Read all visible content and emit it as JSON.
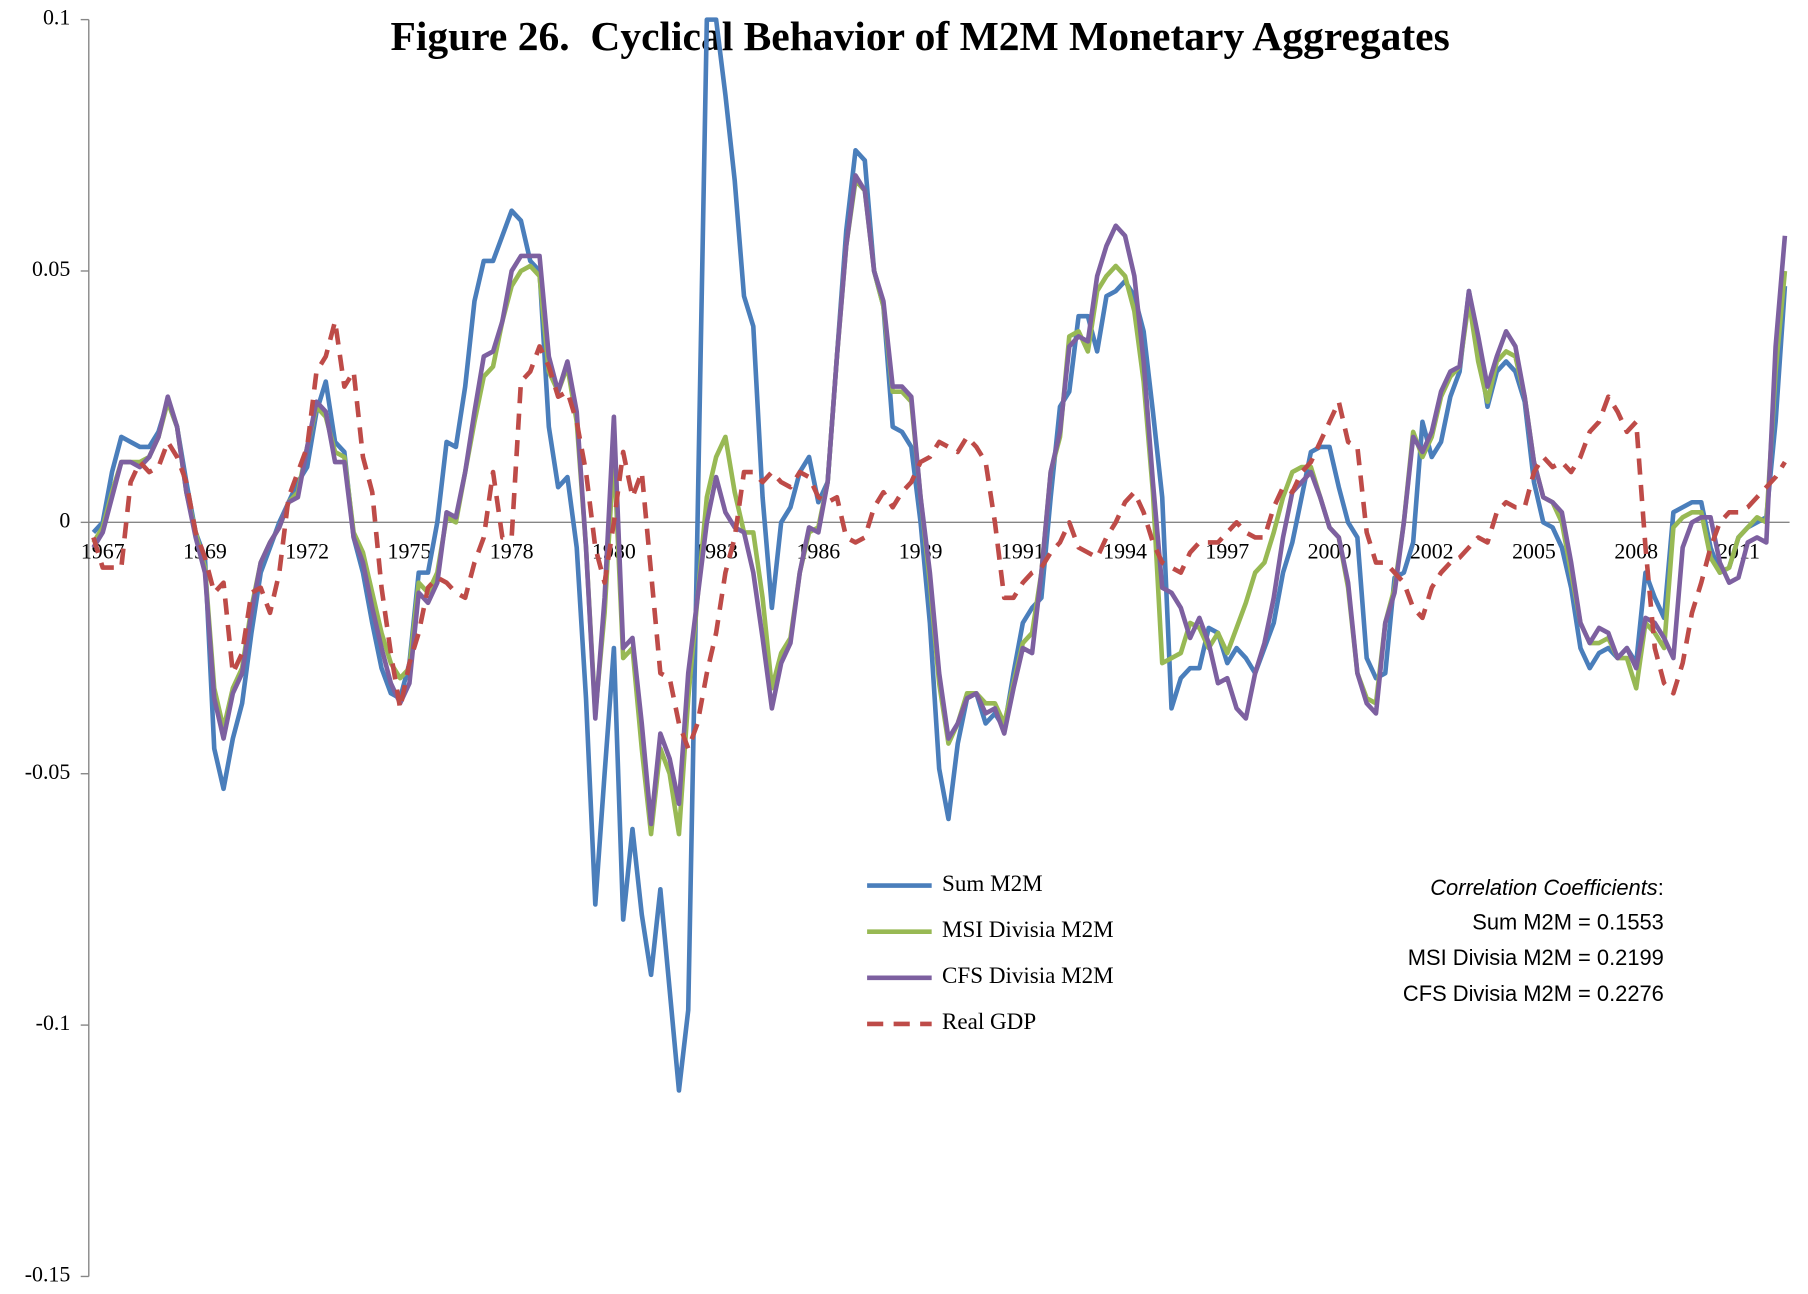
{
  "chart_data": {
    "type": "line",
    "title": "Figure 26.  Cyclical Behavior of M2M Monetary Aggregates",
    "categories": [
      null,
      "1967",
      null,
      null,
      null,
      null,
      null,
      null,
      null,
      null,
      null,
      null,
      "1969",
      null,
      null,
      null,
      null,
      null,
      null,
      null,
      null,
      null,
      null,
      "1972",
      null,
      null,
      null,
      null,
      null,
      null,
      null,
      null,
      null,
      null,
      "1975",
      null,
      null,
      null,
      null,
      null,
      null,
      null,
      null,
      null,
      null,
      "1978",
      null,
      null,
      null,
      null,
      null,
      null,
      null,
      null,
      null,
      null,
      "1980",
      null,
      null,
      null,
      null,
      null,
      null,
      null,
      null,
      null,
      null,
      "1983",
      null,
      null,
      null,
      null,
      null,
      null,
      null,
      null,
      null,
      null,
      "1986",
      null,
      null,
      null,
      null,
      null,
      null,
      null,
      null,
      null,
      null,
      "1989",
      null,
      null,
      null,
      null,
      null,
      null,
      null,
      null,
      null,
      null,
      "1991",
      null,
      null,
      null,
      null,
      null,
      null,
      null,
      null,
      null,
      null,
      "1994",
      null,
      null,
      null,
      null,
      null,
      null,
      null,
      null,
      null,
      null,
      "1997",
      null,
      null,
      null,
      null,
      null,
      null,
      null,
      null,
      null,
      null,
      "2000",
      null,
      null,
      null,
      null,
      null,
      null,
      null,
      null,
      null,
      null,
      "2002",
      null,
      null,
      null,
      null,
      null,
      null,
      null,
      null,
      null,
      null,
      "2005",
      null,
      null,
      null,
      null,
      null,
      null,
      null,
      null,
      null,
      null,
      "2008",
      null,
      null,
      null,
      null,
      null,
      null,
      null,
      null,
      null,
      null,
      "2011",
      null,
      null,
      null,
      null,
      null
    ],
    "series": [
      {
        "name": "Sum M2M",
        "color": "#4a7ebb",
        "dash": false,
        "values": [
          -0.002,
          0,
          0.01,
          0.017,
          0.016,
          0.015,
          0.015,
          0.018,
          0.024,
          0.019,
          0.008,
          -0.002,
          -0.007,
          -0.045,
          -0.053,
          -0.043,
          -0.036,
          -0.022,
          -0.01,
          -0.005,
          0,
          0.004,
          0.008,
          0.011,
          0.022,
          0.028,
          0.016,
          0.014,
          -0.003,
          -0.01,
          -0.02,
          -0.029,
          -0.034,
          -0.035,
          -0.028,
          -0.01,
          -0.01,
          0,
          0.016,
          0.015,
          0.027,
          0.044,
          0.052,
          0.052,
          0.057,
          0.062,
          0.06,
          0.052,
          0.05,
          0.019,
          0.007,
          0.009,
          -0.005,
          -0.035,
          -0.076,
          -0.05,
          -0.025,
          -0.079,
          -0.061,
          -0.078,
          -0.09,
          -0.073,
          -0.093,
          -0.113,
          -0.097,
          0,
          0.1,
          0.1,
          0.085,
          0.068,
          0.045,
          0.039,
          0.005,
          -0.017,
          0,
          0.003,
          0.01,
          0.013,
          0.004,
          0.008,
          0.033,
          0.058,
          0.074,
          0.072,
          0.05,
          0.043,
          0.019,
          0.018,
          0.015,
          0,
          -0.02,
          -0.049,
          -0.059,
          -0.044,
          -0.035,
          -0.034,
          -0.04,
          -0.038,
          -0.041,
          -0.03,
          -0.02,
          -0.017,
          -0.015,
          0.005,
          0.023,
          0.026,
          0.041,
          0.041,
          0.034,
          0.045,
          0.046,
          0.048,
          0.045,
          0.038,
          0.022,
          0.005,
          -0.037,
          -0.031,
          -0.029,
          -0.029,
          -0.021,
          -0.022,
          -0.028,
          -0.025,
          -0.027,
          -0.03,
          -0.025,
          -0.02,
          -0.01,
          -0.004,
          0.005,
          0.014,
          0.015,
          0.015,
          0.007,
          0,
          -0.003,
          -0.027,
          -0.031,
          -0.03,
          -0.011,
          -0.01,
          -0.004,
          0.02,
          0.013,
          0.016,
          0.025,
          0.03,
          0.046,
          0.035,
          0.023,
          0.03,
          0.032,
          0.03,
          0.024,
          0.008,
          0,
          -0.001,
          -0.005,
          -0.013,
          -0.025,
          -0.029,
          -0.026,
          -0.025,
          -0.027,
          -0.025,
          -0.028,
          -0.01,
          -0.015,
          -0.019,
          0.002,
          0.003,
          0.004,
          0.004,
          -0.005,
          -0.01,
          -0.009,
          -0.003,
          -0.001,
          0,
          0.001,
          0.02,
          0.047
        ]
      },
      {
        "name": "MSI Divisia M2M",
        "color": "#98b954",
        "dash": false,
        "values": [
          -0.004,
          -0.001,
          0.006,
          0.012,
          0.012,
          0.012,
          0.013,
          0.017,
          0.024,
          0.019,
          0.006,
          -0.002,
          -0.009,
          -0.033,
          -0.041,
          -0.033,
          -0.029,
          -0.017,
          -0.008,
          -0.004,
          -0.001,
          0.004,
          0.006,
          0.015,
          0.023,
          0.021,
          0.014,
          0.013,
          -0.002,
          -0.006,
          -0.014,
          -0.022,
          -0.028,
          -0.031,
          -0.029,
          -0.012,
          -0.014,
          -0.01,
          0.001,
          0,
          0.01,
          0.02,
          0.029,
          0.031,
          0.04,
          0.047,
          0.05,
          0.051,
          0.049,
          0.03,
          0.026,
          0.031,
          0.02,
          -0.005,
          -0.038,
          -0.018,
          0.014,
          -0.027,
          -0.025,
          -0.045,
          -0.062,
          -0.045,
          -0.05,
          -0.062,
          -0.035,
          -0.015,
          0.005,
          0.013,
          0.017,
          0.006,
          -0.002,
          -0.002,
          -0.015,
          -0.033,
          -0.026,
          -0.023,
          -0.01,
          -0.002,
          -0.001,
          0.008,
          0.033,
          0.055,
          0.068,
          0.066,
          0.05,
          0.043,
          0.026,
          0.026,
          0.024,
          0.005,
          -0.012,
          -0.032,
          -0.044,
          -0.04,
          -0.034,
          -0.034,
          -0.036,
          -0.036,
          -0.04,
          -0.032,
          -0.024,
          -0.022,
          -0.01,
          0.01,
          0.017,
          0.037,
          0.038,
          0.034,
          0.046,
          0.049,
          0.051,
          0.049,
          0.042,
          0.028,
          0.006,
          -0.028,
          -0.027,
          -0.026,
          -0.02,
          -0.021,
          -0.025,
          -0.022,
          -0.026,
          -0.021,
          -0.016,
          -0.01,
          -0.008,
          -0.002,
          0.005,
          0.01,
          0.011,
          0.011,
          0.005,
          -0.001,
          -0.003,
          -0.013,
          -0.03,
          -0.035,
          -0.036,
          -0.02,
          -0.013,
          0,
          0.018,
          0.013,
          0.017,
          0.025,
          0.029,
          0.031,
          0.044,
          0.032,
          0.024,
          0.032,
          0.034,
          0.033,
          0.025,
          0.012,
          0.005,
          0.004,
          0,
          -0.01,
          -0.02,
          -0.024,
          -0.024,
          -0.023,
          -0.027,
          -0.027,
          -0.033,
          -0.02,
          -0.022,
          -0.025,
          -0.001,
          0.001,
          0.002,
          0.002,
          -0.007,
          -0.01,
          -0.009,
          -0.003,
          -0.001,
          0.001,
          0,
          0.03,
          0.05
        ]
      },
      {
        "name": "CFS Divisia M2M",
        "color": "#7d60a0",
        "dash": false,
        "values": [
          -0.005,
          -0.002,
          0.005,
          0.012,
          0.012,
          0.011,
          0.013,
          0.017,
          0.025,
          0.019,
          0.006,
          -0.003,
          -0.01,
          -0.035,
          -0.043,
          -0.034,
          -0.03,
          -0.018,
          -0.008,
          -0.004,
          -0.001,
          0.004,
          0.005,
          0.015,
          0.024,
          0.022,
          0.012,
          0.012,
          -0.003,
          -0.008,
          -0.017,
          -0.025,
          -0.032,
          -0.036,
          -0.032,
          -0.014,
          -0.016,
          -0.012,
          0.002,
          0.001,
          0.01,
          0.022,
          0.033,
          0.034,
          0.04,
          0.05,
          0.053,
          0.053,
          0.053,
          0.033,
          0.026,
          0.032,
          0.022,
          -0.005,
          -0.039,
          -0.015,
          0.021,
          -0.025,
          -0.023,
          -0.04,
          -0.06,
          -0.042,
          -0.047,
          -0.056,
          -0.03,
          -0.015,
          0,
          0.009,
          0.002,
          -0.001,
          -0.002,
          -0.01,
          -0.023,
          -0.037,
          -0.028,
          -0.024,
          -0.01,
          -0.001,
          -0.002,
          0.008,
          0.033,
          0.055,
          0.069,
          0.066,
          0.05,
          0.044,
          0.027,
          0.027,
          0.025,
          0.005,
          -0.01,
          -0.03,
          -0.043,
          -0.04,
          -0.035,
          -0.034,
          -0.038,
          -0.037,
          -0.042,
          -0.033,
          -0.025,
          -0.026,
          -0.01,
          0.01,
          0.018,
          0.035,
          0.037,
          0.036,
          0.049,
          0.055,
          0.059,
          0.057,
          0.049,
          0.032,
          0.008,
          -0.013,
          -0.014,
          -0.017,
          -0.023,
          -0.019,
          -0.024,
          -0.032,
          -0.031,
          -0.037,
          -0.039,
          -0.03,
          -0.024,
          -0.015,
          -0.003,
          0.006,
          0.008,
          0.01,
          0.005,
          -0.001,
          -0.003,
          -0.012,
          -0.03,
          -0.036,
          -0.038,
          -0.02,
          -0.014,
          0,
          0.017,
          0.014,
          0.018,
          0.026,
          0.03,
          0.031,
          0.046,
          0.037,
          0.027,
          0.033,
          0.038,
          0.035,
          0.025,
          0.012,
          0.005,
          0.004,
          0.002,
          -0.008,
          -0.02,
          -0.024,
          -0.021,
          -0.022,
          -0.027,
          -0.025,
          -0.029,
          -0.019,
          -0.02,
          -0.023,
          -0.027,
          -0.005,
          0,
          0.001,
          0.001,
          -0.008,
          -0.012,
          -0.011,
          -0.004,
          -0.003,
          -0.004,
          0.035,
          0.057
        ]
      },
      {
        "name": "Real GDP",
        "color": "#be4b48",
        "dash": true,
        "values": [
          -0.003,
          -0.009,
          -0.009,
          -0.009,
          0.008,
          0.012,
          0.01,
          0.011,
          0.016,
          0.013,
          0.008,
          -0.002,
          -0.007,
          -0.014,
          -0.012,
          -0.03,
          -0.026,
          -0.014,
          -0.013,
          -0.018,
          -0.01,
          0.005,
          0.01,
          0.015,
          0.03,
          0.033,
          0.04,
          0.027,
          0.03,
          0.013,
          0.006,
          -0.013,
          -0.026,
          -0.037,
          -0.028,
          -0.022,
          -0.013,
          -0.011,
          -0.012,
          -0.014,
          -0.015,
          -0.008,
          -0.003,
          0.01,
          -0.003,
          -0.003,
          0.028,
          0.03,
          0.035,
          0.031,
          0.025,
          0.026,
          0.02,
          0.01,
          -0.005,
          -0.012,
          0,
          0.014,
          0.005,
          0.01,
          -0.01,
          -0.03,
          -0.031,
          -0.04,
          -0.045,
          -0.04,
          -0.03,
          -0.022,
          -0.01,
          -0.003,
          0.01,
          0.01,
          0.008,
          0.01,
          0.008,
          0.007,
          0.01,
          0.009,
          0.005,
          0.004,
          0.005,
          -0.003,
          -0.004,
          -0.003,
          0.003,
          0.006,
          0.003,
          0.006,
          0.008,
          0.012,
          0.013,
          0.016,
          0.015,
          0.014,
          0.017,
          0.015,
          0.012,
          0,
          -0.015,
          -0.015,
          -0.012,
          -0.01,
          -0.009,
          -0.006,
          -0.004,
          0,
          -0.005,
          -0.006,
          -0.007,
          -0.003,
          0,
          0.004,
          0.006,
          0.002,
          -0.004,
          -0.008,
          -0.009,
          -0.01,
          -0.006,
          -0.004,
          -0.004,
          -0.004,
          -0.002,
          0,
          -0.002,
          -0.003,
          -0.003,
          0.003,
          0.007,
          0.006,
          0.01,
          0.012,
          0.016,
          0.02,
          0.024,
          0.016,
          0.015,
          -0.002,
          -0.008,
          -0.008,
          -0.01,
          -0.012,
          -0.017,
          -0.019,
          -0.013,
          -0.01,
          -0.008,
          -0.007,
          -0.005,
          -0.003,
          -0.004,
          0.002,
          0.004,
          0.003,
          0.003,
          0.01,
          0.013,
          0.011,
          0.012,
          0.01,
          0.013,
          0.018,
          0.02,
          0.025,
          0.022,
          0.018,
          0.02,
          -0.005,
          -0.025,
          -0.032,
          -0.034,
          -0.028,
          -0.018,
          -0.012,
          -0.005,
          0,
          0.002,
          0.002,
          0.003,
          0.005,
          0.007,
          0.009,
          0.012
        ]
      }
    ],
    "ylim": [
      -0.15,
      0.1
    ],
    "yticks": [
      -0.15,
      -0.1,
      -0.05,
      0,
      0.05,
      0.1
    ],
    "grid": false,
    "legend": "lower center",
    "annotation": {
      "heading": "Correlation Coefficients",
      "heading_suffix": ":",
      "lines": [
        "Sum M2M = 0.1553",
        "MSI Divisia M2M = 0.2199",
        "CFS Divisia M2M = 0.2276"
      ]
    }
  }
}
